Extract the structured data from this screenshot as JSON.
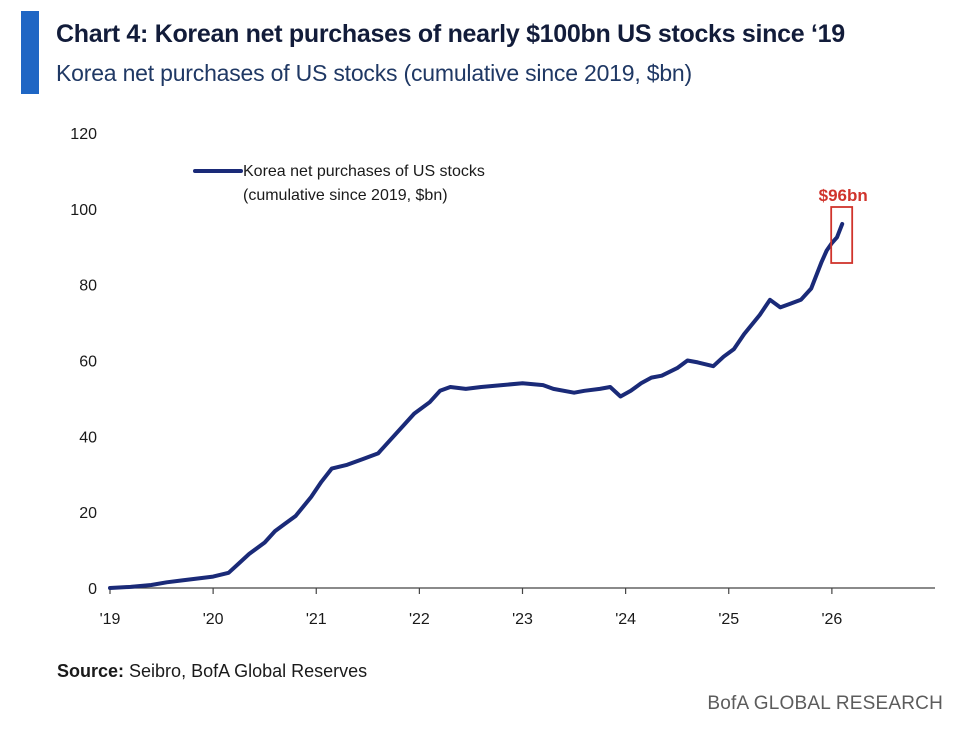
{
  "header": {
    "title": "Chart 4: Korean net purchases of nearly $100bn US stocks since ‘19",
    "subtitle": "Korea net purchases of US stocks (cumulative since 2019, $bn)",
    "accent_color": "#1f66c4"
  },
  "legend": {
    "line1": "Korea net purchases of US stocks",
    "line2": "(cumulative since 2019, $bn)"
  },
  "source": {
    "label": "Source:",
    "text": " Seibro, BofA Global Reserves"
  },
  "footer": {
    "text": "BofA GLOBAL RESEARCH"
  },
  "chart_data": {
    "type": "line",
    "title": "Chart 4: Korean net purchases of nearly $100bn US stocks since ‘19",
    "ylim": [
      0,
      120
    ],
    "yticks": [
      0,
      20,
      40,
      60,
      80,
      100,
      120
    ],
    "ytick_labels": [
      "0",
      "20",
      "40",
      "60",
      "80",
      "100",
      "120"
    ],
    "xlim": [
      2019,
      2027
    ],
    "xticks": [
      2019,
      2020,
      2021,
      2022,
      2023,
      2024,
      2025,
      2026
    ],
    "xtick_labels": [
      "'19",
      "'20",
      "'21",
      "'22",
      "'23",
      "'24",
      "'25",
      "'26"
    ],
    "grid": false,
    "legend_position": "top-left",
    "line_color": "#1a2a78",
    "series": [
      {
        "name": "Korea net purchases of US stocks (cumulative since 2019, $bn)",
        "x": [
          2019.0,
          2019.2,
          2019.4,
          2019.55,
          2019.7,
          2020.0,
          2020.15,
          2020.25,
          2020.35,
          2020.5,
          2020.6,
          2020.7,
          2020.8,
          2020.95,
          2021.05,
          2021.15,
          2021.3,
          2021.45,
          2021.6,
          2021.75,
          2021.85,
          2021.95,
          2022.1,
          2022.2,
          2022.3,
          2022.45,
          2022.6,
          2022.8,
          2023.0,
          2023.2,
          2023.3,
          2023.5,
          2023.6,
          2023.75,
          2023.85,
          2023.95,
          2024.05,
          2024.15,
          2024.25,
          2024.35,
          2024.5,
          2024.6,
          2024.7,
          2024.85,
          2024.95,
          2025.05,
          2025.15,
          2025.3,
          2025.4,
          2025.5,
          2025.6,
          2025.7,
          2025.8,
          2025.9,
          2025.95,
          2026.0,
          2026.05,
          2026.1
        ],
        "values": [
          0,
          0.3,
          0.8,
          1.5,
          2.0,
          3.0,
          4.0,
          6.5,
          9.0,
          12.0,
          15.0,
          17.0,
          19.0,
          24.0,
          28.0,
          31.5,
          32.5,
          34.0,
          35.5,
          40.0,
          43.0,
          46.0,
          49.0,
          52.0,
          53.0,
          52.5,
          53.0,
          53.5,
          54.0,
          53.5,
          52.5,
          51.5,
          52.0,
          52.5,
          53.0,
          50.5,
          52.0,
          54.0,
          55.5,
          56.0,
          58.0,
          60.0,
          59.5,
          58.5,
          61.0,
          63.0,
          67.0,
          72.0,
          76.0,
          74.0,
          75.0,
          76.0,
          79.0,
          86.0,
          89.0,
          91.0,
          92.5,
          96.0
        ]
      }
    ],
    "annotations": [
      {
        "text": "$96bn",
        "x": 2026.1,
        "y": 96,
        "color": "#d0342c"
      }
    ]
  }
}
